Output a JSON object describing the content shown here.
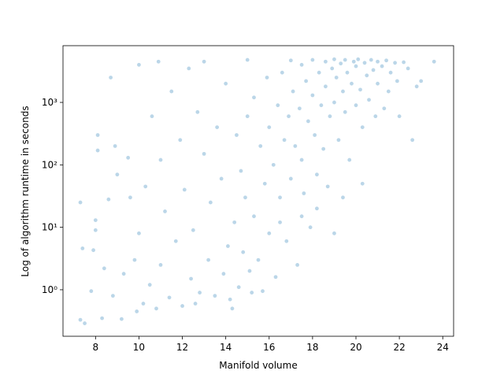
{
  "chart_data": {
    "type": "scatter",
    "xlabel": "Manifold volume",
    "ylabel": "Log of algorithm runtime in seconds",
    "color": "#1f77b4",
    "yscale": "log",
    "xlim": [
      6.5,
      24.5
    ],
    "ylim": [
      0.18,
      8100
    ],
    "xticks": [
      8,
      10,
      12,
      14,
      16,
      18,
      20,
      22,
      24
    ],
    "yticks": [
      {
        "value": 1,
        "label": "10⁰"
      },
      {
        "value": 10,
        "label": "10¹"
      },
      {
        "value": 100,
        "label": "10²"
      },
      {
        "value": 1000,
        "label": "10³"
      }
    ],
    "x": [
      7.3,
      7.3,
      7.5,
      7.4,
      7.8,
      7.9,
      8.0,
      8.0,
      8.1,
      8.1,
      8.3,
      8.4,
      8.6,
      8.7,
      8.8,
      8.9,
      9.0,
      9.2,
      9.3,
      9.5,
      9.6,
      9.8,
      10.0,
      10.0,
      10.2,
      10.3,
      10.5,
      10.6,
      10.8,
      10.9,
      11.0,
      11.0,
      11.2,
      11.4,
      11.5,
      11.7,
      11.9,
      12.0,
      12.1,
      12.3,
      12.4,
      12.5,
      12.7,
      12.8,
      13.0,
      13.0,
      13.2,
      13.3,
      13.5,
      13.6,
      13.8,
      13.9,
      14.0,
      14.1,
      14.2,
      14.4,
      14.5,
      14.6,
      14.7,
      14.8,
      14.9,
      15.0,
      15.0,
      15.1,
      15.3,
      15.3,
      15.5,
      15.6,
      15.7,
      15.8,
      15.9,
      16.0,
      16.0,
      16.2,
      16.3,
      16.4,
      16.5,
      16.6,
      16.7,
      16.8,
      16.9,
      17.0,
      17.0,
      17.1,
      17.2,
      17.3,
      17.4,
      17.5,
      17.5,
      17.6,
      17.7,
      17.8,
      17.9,
      18.0,
      18.0,
      18.1,
      18.2,
      18.3,
      18.4,
      18.5,
      18.6,
      18.6,
      18.7,
      18.8,
      18.9,
      19.0,
      19.0,
      19.1,
      19.2,
      19.3,
      19.4,
      19.5,
      19.5,
      19.6,
      19.7,
      19.8,
      19.9,
      20.0,
      20.0,
      20.1,
      20.2,
      20.3,
      20.4,
      20.5,
      20.6,
      20.7,
      20.8,
      20.9,
      21.0,
      21.0,
      21.2,
      21.3,
      21.4,
      21.5,
      21.6,
      21.8,
      21.9,
      22.0,
      22.2,
      22.4,
      22.6,
      22.8,
      23.0,
      23.6,
      18.2,
      19.0,
      17.5,
      16.5,
      20.3,
      19.4,
      15.2,
      14.3,
      12.6,
      9.9
    ],
    "y": [
      25,
      0.33,
      0.29,
      4.6,
      0.95,
      4.3,
      13,
      9,
      170,
      300,
      0.35,
      2.2,
      28,
      2500,
      0.8,
      200,
      70,
      0.34,
      1.8,
      130,
      30,
      3,
      4000,
      8,
      0.6,
      45,
      1.2,
      600,
      0.5,
      4500,
      120,
      2.5,
      18,
      0.75,
      1500,
      6,
      250,
      0.55,
      40,
      3500,
      1.5,
      9,
      700,
      0.9,
      150,
      4500,
      3,
      25,
      0.8,
      400,
      60,
      1.8,
      2000,
      5,
      0.7,
      12,
      300,
      1.1,
      80,
      4,
      30,
      4800,
      600,
      2,
      1200,
      15,
      3,
      200,
      0.95,
      50,
      2500,
      400,
      8,
      100,
      1.6,
      900,
      30,
      3000,
      250,
      6,
      600,
      4700,
      60,
      1500,
      200,
      2.5,
      800,
      4000,
      120,
      35,
      2200,
      500,
      10,
      4800,
      1300,
      300,
      70,
      3000,
      900,
      180,
      4500,
      1800,
      45,
      600,
      3500,
      4900,
      1000,
      2500,
      250,
      4200,
      1500,
      700,
      4800,
      3000,
      120,
      2000,
      4500,
      900,
      3800,
      4900,
      1600,
      400,
      4300,
      2700,
      1100,
      4800,
      3300,
      600,
      4500,
      2000,
      3800,
      800,
      4700,
      1500,
      3000,
      4300,
      2200,
      600,
      4400,
      3500,
      250,
      1800,
      2200,
      4500,
      20,
      8,
      15,
      12,
      50,
      30,
      0.9,
      0.5,
      0.6,
      0.45
    ]
  }
}
